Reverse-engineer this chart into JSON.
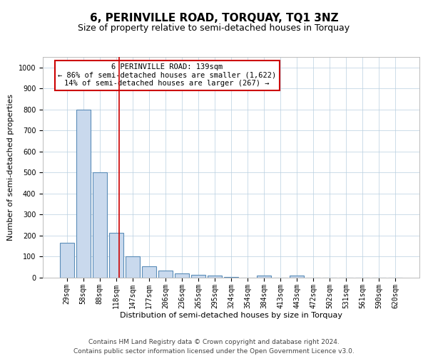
{
  "title": "6, PERINVILLE ROAD, TORQUAY, TQ1 3NZ",
  "subtitle": "Size of property relative to semi-detached houses in Torquay",
  "xlabel": "Distribution of semi-detached houses by size in Torquay",
  "ylabel": "Number of semi-detached properties",
  "footer_line1": "Contains HM Land Registry data © Crown copyright and database right 2024.",
  "footer_line2": "Contains public sector information licensed under the Open Government Licence v3.0.",
  "categories": [
    "29sqm",
    "58sqm",
    "88sqm",
    "118sqm",
    "147sqm",
    "177sqm",
    "206sqm",
    "236sqm",
    "265sqm",
    "295sqm",
    "324sqm",
    "354sqm",
    "384sqm",
    "413sqm",
    "443sqm",
    "472sqm",
    "502sqm",
    "531sqm",
    "561sqm",
    "590sqm",
    "620sqm"
  ],
  "values": [
    165,
    800,
    500,
    215,
    100,
    55,
    35,
    20,
    12,
    10,
    5,
    0,
    10,
    0,
    10,
    0,
    0,
    0,
    0,
    0,
    0
  ],
  "bar_color": "#c9d9ed",
  "bar_edge_color": "#5b8db8",
  "bar_edge_width": 0.8,
  "grid_color": "#b8cfe0",
  "ylim": [
    0,
    1050
  ],
  "yticks": [
    0,
    100,
    200,
    300,
    400,
    500,
    600,
    700,
    800,
    900,
    1000
  ],
  "property_line_color": "#cc0000",
  "annotation_text_line1": "6 PERINVILLE ROAD: 139sqm",
  "annotation_text_line2": "← 86% of semi-detached houses are smaller (1,622)",
  "annotation_text_line3": "14% of semi-detached houses are larger (267) →",
  "annotation_box_color": "#ffffff",
  "annotation_box_edge_color": "#cc0000",
  "title_fontsize": 11,
  "subtitle_fontsize": 9,
  "annotation_fontsize": 7.5,
  "axis_label_fontsize": 8,
  "tick_fontsize": 7,
  "footer_fontsize": 6.5,
  "bg_color": "#ffffff",
  "plot_bg_color": "#ffffff"
}
